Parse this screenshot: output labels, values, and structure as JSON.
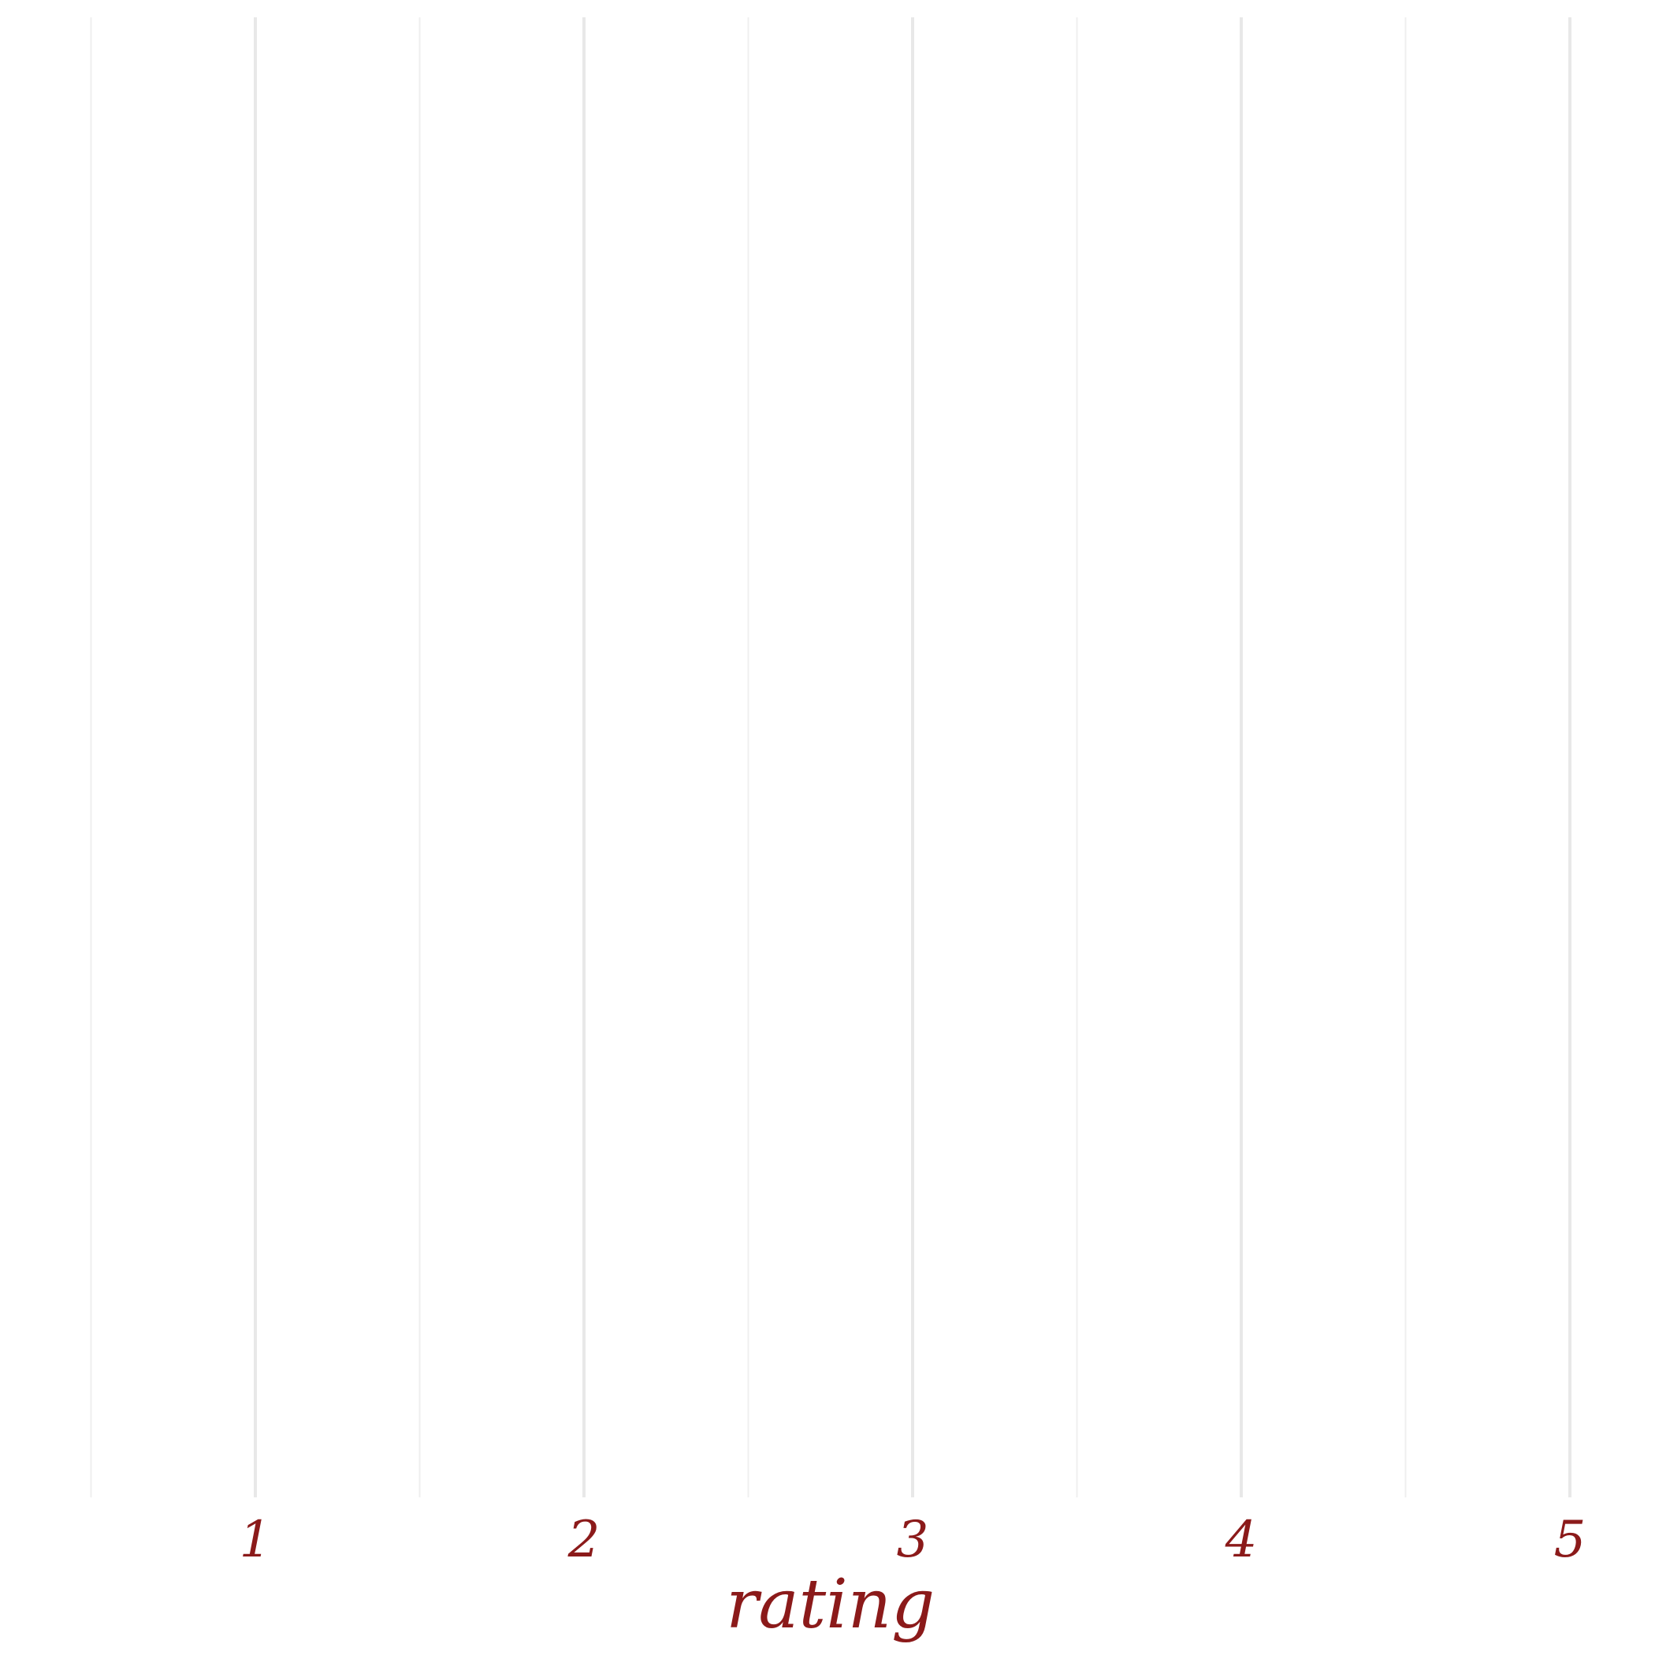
{
  "chart_data": {
    "type": "bar",
    "title": "",
    "xlabel": "rating",
    "ylabel": "",
    "xlim": [
      0.5,
      5
    ],
    "x_ticks": [
      1,
      2,
      3,
      4,
      5
    ],
    "x_tick_labels": [
      "1",
      "2",
      "3",
      "4",
      "5"
    ],
    "minor_gridlines_x": [
      0.5,
      1.5,
      2.5,
      3.5,
      4.5
    ],
    "grid": true,
    "series": [],
    "colors": {
      "text": "#8B1A1A",
      "major_grid": "#E8E8E8",
      "minor_grid": "#EFEFEF",
      "background": "#FFFFFF"
    }
  }
}
